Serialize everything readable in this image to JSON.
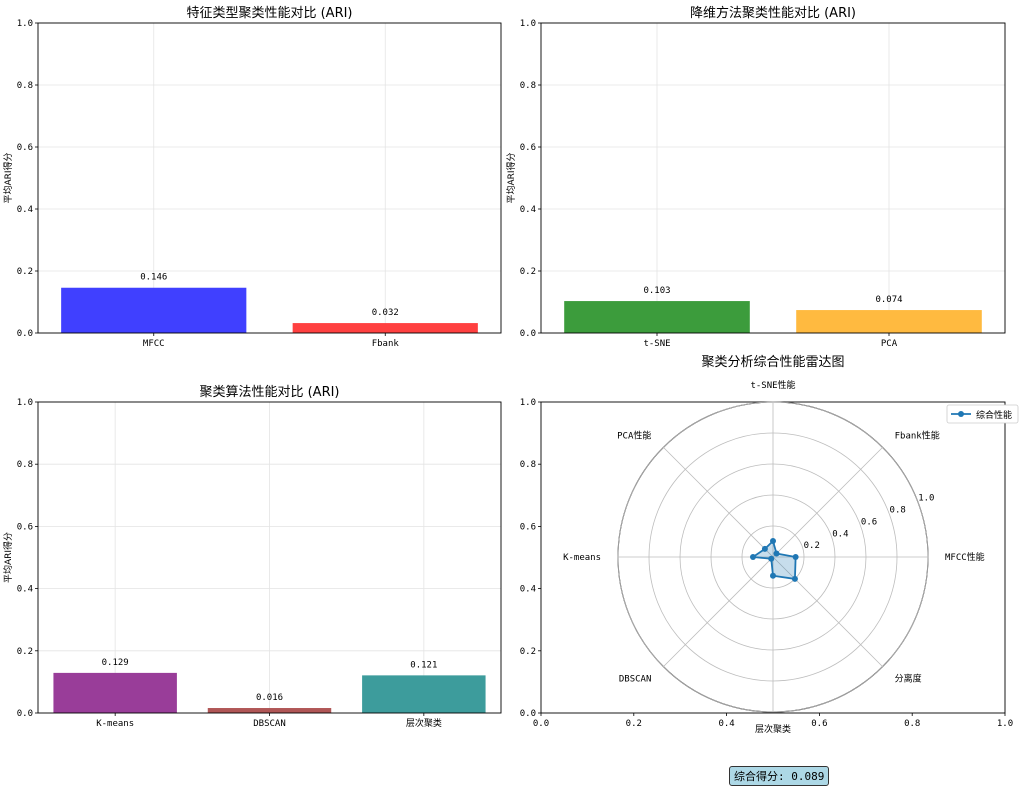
{
  "chart_data": [
    {
      "type": "bar",
      "title": "特征类型聚类性能对比 (ARI)",
      "ylabel": "平均ARI得分",
      "ylim": [
        0,
        1
      ],
      "yticks": [
        "0.0",
        "0.2",
        "0.4",
        "0.6",
        "0.8",
        "1.0"
      ],
      "categories": [
        "MFCC",
        "Fbank"
      ],
      "values": [
        0.146,
        0.032
      ],
      "value_labels": [
        "0.146",
        "0.032"
      ],
      "colors": [
        "#4040ff",
        "#ff4040"
      ],
      "grid": true
    },
    {
      "type": "bar",
      "title": "降维方法聚类性能对比 (ARI)",
      "ylabel": "平均ARI得分",
      "ylim": [
        0,
        1
      ],
      "yticks": [
        "0.0",
        "0.2",
        "0.4",
        "0.6",
        "0.8",
        "1.0"
      ],
      "categories": [
        "t-SNE",
        "PCA"
      ],
      "values": [
        0.103,
        0.074
      ],
      "value_labels": [
        "0.103",
        "0.074"
      ],
      "colors": [
        "#3c9c3c",
        "#ffba40"
      ],
      "grid": true
    },
    {
      "type": "bar",
      "title": "聚类算法性能对比 (ARI)",
      "ylabel": "平均ARI得分",
      "ylim": [
        0,
        1
      ],
      "yticks": [
        "0.0",
        "0.2",
        "0.4",
        "0.6",
        "0.8",
        "1.0"
      ],
      "categories": [
        "K-means",
        "DBSCAN",
        "层次聚类"
      ],
      "values": [
        0.129,
        0.016,
        0.121
      ],
      "value_labels": [
        "0.129",
        "0.016",
        "0.121"
      ],
      "colors": [
        "#993d99",
        "#b05656",
        "#3d9c9c"
      ],
      "grid": true
    },
    {
      "type": "radar",
      "title": "聚类分析综合性能雷达图",
      "axes": [
        "MFCC性能",
        "Fbank性能",
        "t-SNE性能",
        "PCA性能",
        "K-means",
        "DBSCAN",
        "层次聚类",
        "分离度"
      ],
      "values": [
        0.146,
        0.032,
        0.103,
        0.074,
        0.129,
        0.016,
        0.121,
        0.2
      ],
      "rlim": [
        0,
        1
      ],
      "rticks": [
        "0.2",
        "0.4",
        "0.6",
        "0.8",
        "1.0"
      ],
      "series": [
        {
          "name": "综合性能",
          "color": "#1f77b4"
        }
      ],
      "legend_position": "top-right",
      "bg_xticks": [
        "0.0",
        "0.2",
        "0.4",
        "0.6",
        "0.8",
        "1.0"
      ],
      "bg_yticks": [
        "0.0",
        "0.2",
        "0.4",
        "0.6",
        "0.8",
        "1.0"
      ]
    }
  ],
  "summary": {
    "score_text": "综合得分: 0.089"
  }
}
